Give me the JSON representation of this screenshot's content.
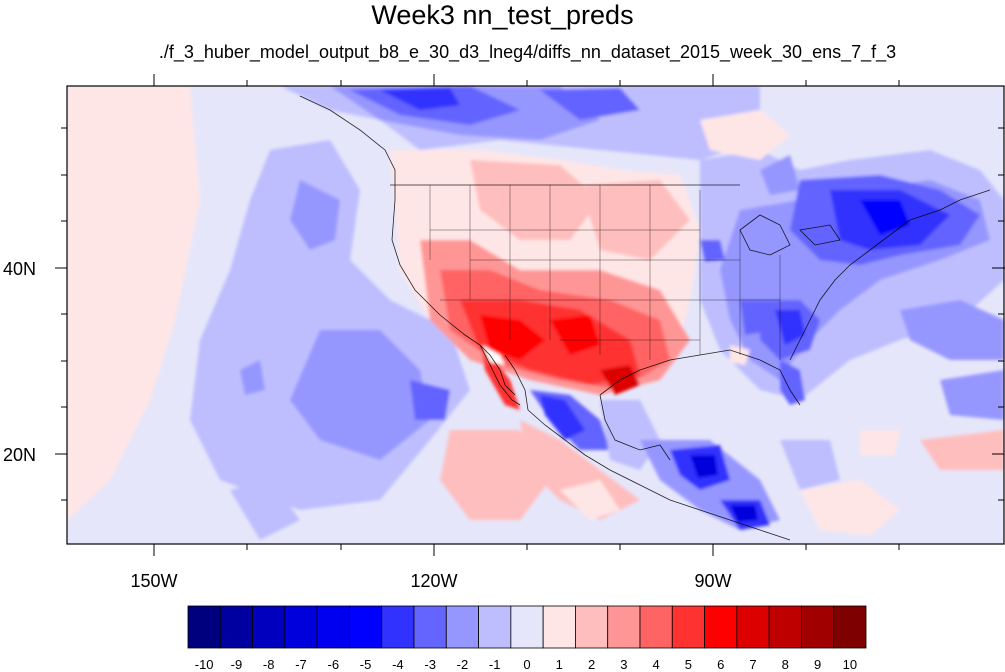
{
  "title": "Week3 nn_test_preds",
  "subtitle": "./f_3_huber_model_output_b8_e_30_d3_lneg4/diffs_nn_dataset_2015_week_30_ens_7_f_3",
  "axes": {
    "lon_labels": [
      "150W",
      "120W",
      "90W"
    ],
    "lat_labels": [
      "40N",
      "20N"
    ]
  },
  "colorbar": {
    "labels": [
      "-10",
      "-9",
      "-8",
      "-7",
      "-6",
      "-5",
      "-4",
      "-3",
      "-2",
      "-1",
      "0",
      "1",
      "2",
      "3",
      "4",
      "5",
      "6",
      "7",
      "8",
      "9",
      "10"
    ],
    "colors": [
      "#00007f",
      "#0000a0",
      "#0000be",
      "#0000dc",
      "#0000f0",
      "#0000ff",
      "#3232ff",
      "#6464ff",
      "#9696ff",
      "#bebeff",
      "#e6e6fa",
      "#ffe6e6",
      "#ffbebe",
      "#ff9696",
      "#ff6464",
      "#ff3232",
      "#ff0000",
      "#dc0000",
      "#be0000",
      "#a00000",
      "#7f0000"
    ]
  }
}
